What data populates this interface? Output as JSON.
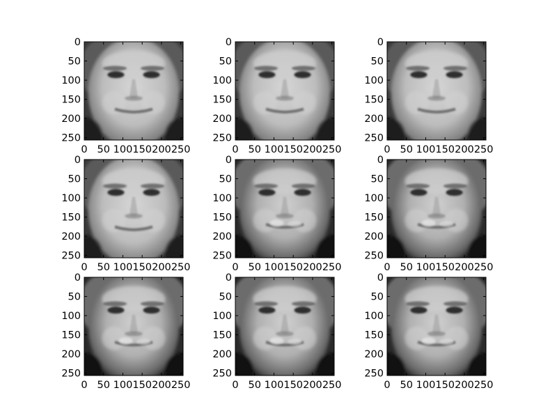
{
  "figure": {
    "background": "#ffffff",
    "grid": false,
    "colormap": "gray"
  },
  "chart_data": [
    {
      "type": "heatmap",
      "title": "",
      "xlabel": "",
      "ylabel": "",
      "xlim": [
        0,
        256
      ],
      "ylim": [
        256,
        0
      ],
      "xticks": [
        "0",
        "50",
        "100",
        "150",
        "200",
        "250"
      ],
      "yticks": [
        "0",
        "50",
        "100",
        "150",
        "200",
        "250"
      ],
      "image": {
        "variant": 0,
        "shape": [
          256,
          256
        ],
        "colormap": "gray"
      }
    },
    {
      "type": "heatmap",
      "title": "",
      "xlabel": "",
      "ylabel": "",
      "xlim": [
        0,
        256
      ],
      "ylim": [
        256,
        0
      ],
      "xticks": [
        "0",
        "50",
        "100",
        "150",
        "200",
        "250"
      ],
      "yticks": [
        "0",
        "50",
        "100",
        "150",
        "200",
        "250"
      ],
      "image": {
        "variant": 1,
        "shape": [
          256,
          256
        ],
        "colormap": "gray"
      }
    },
    {
      "type": "heatmap",
      "title": "",
      "xlabel": "",
      "ylabel": "",
      "xlim": [
        0,
        256
      ],
      "ylim": [
        256,
        0
      ],
      "xticks": [
        "0",
        "50",
        "100",
        "150",
        "200",
        "250"
      ],
      "yticks": [
        "0",
        "50",
        "100",
        "150",
        "200",
        "250"
      ],
      "image": {
        "variant": 2,
        "shape": [
          256,
          256
        ],
        "colormap": "gray"
      }
    },
    {
      "type": "heatmap",
      "title": "",
      "xlabel": "",
      "ylabel": "",
      "xlim": [
        0,
        256
      ],
      "ylim": [
        256,
        0
      ],
      "xticks": [
        "0",
        "50",
        "100",
        "150",
        "200",
        "250"
      ],
      "yticks": [
        "0",
        "50",
        "100",
        "150",
        "200",
        "250"
      ],
      "image": {
        "variant": 3,
        "shape": [
          256,
          256
        ],
        "colormap": "gray"
      }
    },
    {
      "type": "heatmap",
      "title": "",
      "xlabel": "",
      "ylabel": "",
      "xlim": [
        0,
        256
      ],
      "ylim": [
        256,
        0
      ],
      "xticks": [
        "0",
        "50",
        "100",
        "150",
        "200",
        "250"
      ],
      "yticks": [
        "0",
        "50",
        "100",
        "150",
        "200",
        "250"
      ],
      "image": {
        "variant": 4,
        "shape": [
          256,
          256
        ],
        "colormap": "gray"
      }
    },
    {
      "type": "heatmap",
      "title": "",
      "xlabel": "",
      "ylabel": "",
      "xlim": [
        0,
        256
      ],
      "ylim": [
        256,
        0
      ],
      "xticks": [
        "0",
        "50",
        "100",
        "150",
        "200",
        "250"
      ],
      "yticks": [
        "0",
        "50",
        "100",
        "150",
        "200",
        "250"
      ],
      "image": {
        "variant": 5,
        "shape": [
          256,
          256
        ],
        "colormap": "gray"
      }
    },
    {
      "type": "heatmap",
      "title": "",
      "xlabel": "",
      "ylabel": "",
      "xlim": [
        0,
        256
      ],
      "ylim": [
        256,
        0
      ],
      "xticks": [
        "0",
        "50",
        "100",
        "150",
        "200",
        "250"
      ],
      "yticks": [
        "0",
        "50",
        "100",
        "150",
        "200",
        "250"
      ],
      "image": {
        "variant": 6,
        "shape": [
          256,
          256
        ],
        "colormap": "gray"
      }
    },
    {
      "type": "heatmap",
      "title": "",
      "xlabel": "",
      "ylabel": "",
      "xlim": [
        0,
        256
      ],
      "ylim": [
        256,
        0
      ],
      "xticks": [
        "0",
        "50",
        "100",
        "150",
        "200",
        "250"
      ],
      "yticks": [
        "0",
        "50",
        "100",
        "150",
        "200",
        "250"
      ],
      "image": {
        "variant": 7,
        "shape": [
          256,
          256
        ],
        "colormap": "gray"
      }
    },
    {
      "type": "heatmap",
      "title": "",
      "xlabel": "",
      "ylabel": "",
      "xlim": [
        0,
        256
      ],
      "ylim": [
        256,
        0
      ],
      "xticks": [
        "0",
        "50",
        "100",
        "150",
        "200",
        "250"
      ],
      "yticks": [
        "0",
        "50",
        "100",
        "150",
        "200",
        "250"
      ],
      "image": {
        "variant": 8,
        "shape": [
          256,
          256
        ],
        "colormap": "gray"
      }
    }
  ]
}
